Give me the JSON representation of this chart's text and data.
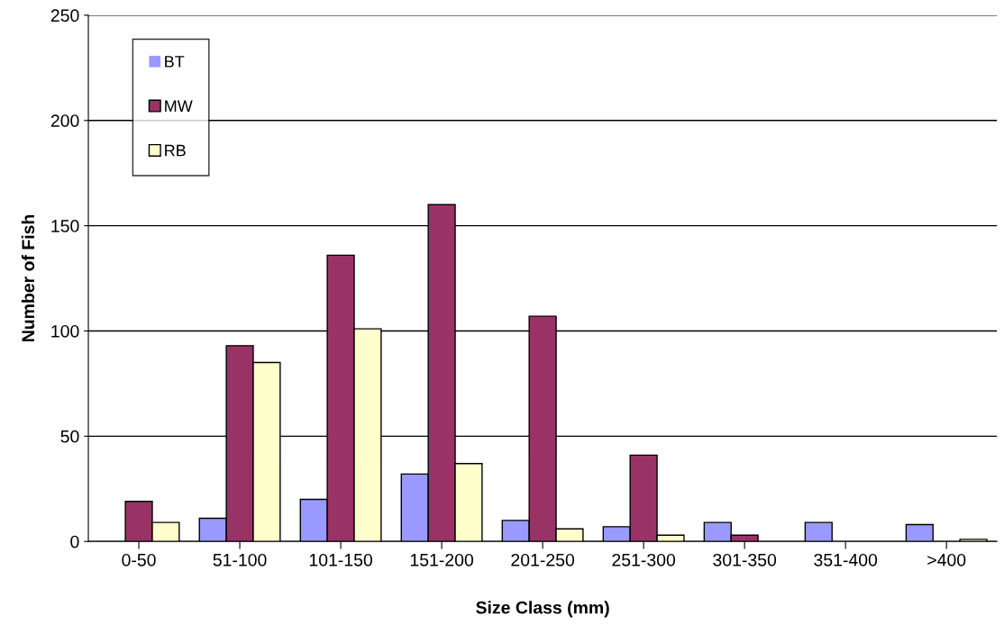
{
  "chart_data": {
    "type": "bar",
    "xlabel": "Size Class (mm)",
    "ylabel": "Number of Fish",
    "categories": [
      "0-50",
      "51-100",
      "101-150",
      "151-200",
      "201-250",
      "251-300",
      "301-350",
      "351-400",
      ">400"
    ],
    "series": [
      {
        "name": "BT",
        "color": "#9999ff",
        "values": [
          0,
          11,
          20,
          32,
          10,
          7,
          9,
          9,
          8
        ]
      },
      {
        "name": "MW",
        "color": "#993366",
        "values": [
          19,
          93,
          136,
          160,
          107,
          41,
          3,
          0,
          0
        ]
      },
      {
        "name": "RB",
        "color": "#ffffcc",
        "values": [
          9,
          85,
          101,
          37,
          6,
          3,
          0,
          0,
          1
        ]
      }
    ],
    "ylim": [
      0,
      250
    ],
    "yticks": [
      0,
      50,
      100,
      150,
      200,
      250
    ],
    "grid": "y",
    "legend": "top left"
  }
}
